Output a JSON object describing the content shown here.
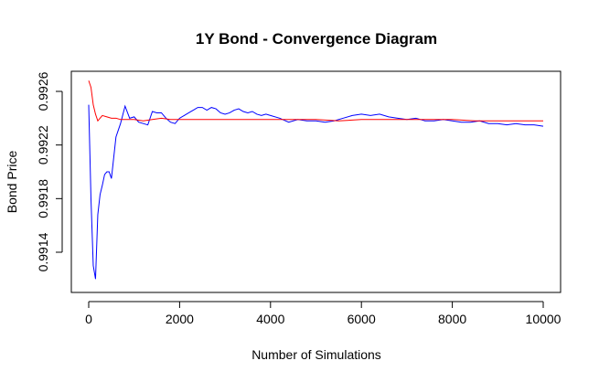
{
  "chart_data": {
    "type": "line",
    "title": "1Y Bond - Convergence Diagram",
    "xlabel": "Number of Simulations",
    "ylabel": "Bond Price",
    "xlim": [
      0,
      10000
    ],
    "ylim": [
      0.9911,
      0.99275
    ],
    "x_ticks": [
      0,
      2000,
      4000,
      6000,
      8000,
      10000
    ],
    "x_tick_labels": [
      "0",
      "2000",
      "4000",
      "6000",
      "8000",
      "10000"
    ],
    "y_ticks": [
      0.9914,
      0.9918,
      0.9922,
      0.9926
    ],
    "y_tick_labels": [
      "0.9914",
      "0.9918",
      "0.9922",
      "0.9926"
    ],
    "grid": false,
    "legend": "none",
    "colors": {
      "blue_series": "#0000ff",
      "red_series": "#ff0000",
      "axes": "#000000"
    },
    "series": [
      {
        "color": "#0000ff",
        "x": [
          0,
          50,
          100,
          150,
          200,
          250,
          300,
          350,
          400,
          450,
          500,
          600,
          700,
          800,
          900,
          1000,
          1100,
          1200,
          1300,
          1400,
          1500,
          1600,
          1700,
          1800,
          1900,
          2000,
          2100,
          2200,
          2300,
          2400,
          2500,
          2600,
          2700,
          2800,
          2900,
          3000,
          3100,
          3200,
          3300,
          3400,
          3500,
          3600,
          3700,
          3800,
          3900,
          4000,
          4200,
          4400,
          4600,
          4800,
          5000,
          5200,
          5400,
          5600,
          5800,
          6000,
          6200,
          6400,
          6600,
          6800,
          7000,
          7200,
          7400,
          7600,
          7800,
          8000,
          8200,
          8400,
          8600,
          8800,
          9000,
          9200,
          9400,
          9600,
          9800,
          10000
        ],
        "y": [
          0.9925,
          0.9918,
          0.9913,
          0.9912,
          0.99168,
          0.99183,
          0.9919,
          0.99198,
          0.992,
          0.992,
          0.99195,
          0.99226,
          0.99236,
          0.99249,
          0.9924,
          0.99241,
          0.99237,
          0.99236,
          0.99235,
          0.99245,
          0.99244,
          0.99244,
          0.9924,
          0.99237,
          0.99236,
          0.9924,
          0.99242,
          0.99244,
          0.99246,
          0.99248,
          0.99248,
          0.99246,
          0.99248,
          0.99247,
          0.99244,
          0.99243,
          0.99244,
          0.99246,
          0.99247,
          0.99245,
          0.99244,
          0.99245,
          0.99243,
          0.99242,
          0.99243,
          0.99242,
          0.9924,
          0.99237,
          0.99239,
          0.99238,
          0.99238,
          0.99237,
          0.99238,
          0.9924,
          0.99242,
          0.99243,
          0.99242,
          0.99243,
          0.99241,
          0.9924,
          0.99239,
          0.9924,
          0.99238,
          0.99238,
          0.99239,
          0.99238,
          0.99237,
          0.99237,
          0.99238,
          0.99236,
          0.99236,
          0.99235,
          0.99236,
          0.99235,
          0.99235,
          0.99234
        ]
      },
      {
        "color": "#ff0000",
        "x": [
          0,
          50,
          100,
          150,
          200,
          250,
          300,
          400,
          500,
          600,
          700,
          800,
          1000,
          1200,
          1400,
          1600,
          1800,
          2000,
          2500,
          3000,
          3500,
          4000,
          4500,
          5000,
          5500,
          6000,
          6500,
          7000,
          7500,
          8000,
          8500,
          9000,
          9500,
          10000
        ],
        "y": [
          0.99268,
          0.99263,
          0.9925,
          0.99243,
          0.99238,
          0.9924,
          0.99242,
          0.99241,
          0.9924,
          0.9924,
          0.99239,
          0.99239,
          0.99239,
          0.99238,
          0.99239,
          0.9924,
          0.99239,
          0.99239,
          0.99239,
          0.99239,
          0.99239,
          0.99239,
          0.99239,
          0.99239,
          0.99238,
          0.99239,
          0.99239,
          0.99239,
          0.99239,
          0.99239,
          0.99238,
          0.99238,
          0.99238,
          0.99238
        ]
      }
    ]
  }
}
